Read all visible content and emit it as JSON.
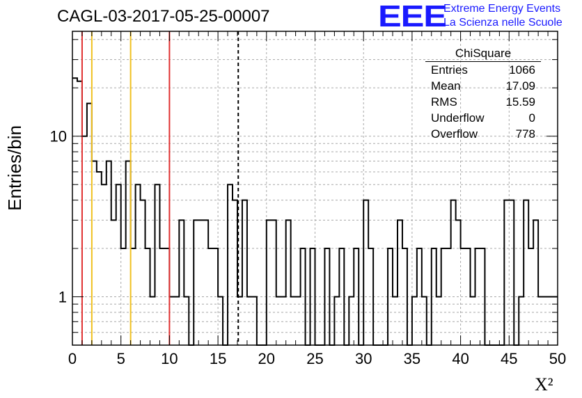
{
  "title": "CAGL-03-2017-05-25-00007",
  "logo": {
    "mark": "EEE",
    "line1": "Extreme Energy Events",
    "line2": "La Scienza nelle Scuole"
  },
  "stats": {
    "header": "ChiSquare",
    "rows": [
      {
        "label": "Entries",
        "value": "1066"
      },
      {
        "label": "Mean",
        "value": "17.09"
      },
      {
        "label": "RMS",
        "value": "15.59"
      },
      {
        "label": "Underflow",
        "value": "0"
      },
      {
        "label": "Overflow",
        "value": "778"
      }
    ]
  },
  "chart_data": {
    "type": "histogram",
    "title": "CAGL-03-2017-05-25-00007",
    "xlabel": "X²",
    "ylabel": "Entries/bin",
    "xlim": [
      0,
      50
    ],
    "ylim": [
      0.5,
      45
    ],
    "yscale": "log",
    "grid": true,
    "bin_width": 0.5,
    "x_ticks": [
      0,
      5,
      10,
      15,
      20,
      25,
      30,
      35,
      40,
      45,
      50
    ],
    "y_ticks": [
      1,
      10
    ],
    "counts": [
      23,
      22,
      10,
      16,
      7,
      6,
      5,
      7,
      3,
      5,
      2,
      7,
      2,
      5,
      4,
      2,
      1,
      5,
      2,
      2,
      1,
      1,
      3,
      1,
      0,
      3,
      3,
      3,
      2,
      2,
      1,
      0,
      5,
      4,
      1,
      4,
      1,
      1,
      0,
      0,
      3,
      3,
      1,
      1,
      3,
      1,
      1,
      2,
      0,
      2,
      0,
      0,
      2,
      0,
      1,
      2,
      0,
      1,
      2,
      0,
      4,
      2,
      0,
      0,
      0,
      2,
      1,
      3,
      2,
      0,
      1,
      2,
      1,
      0,
      2,
      1,
      2,
      2,
      4,
      3,
      2,
      2,
      1,
      2,
      2,
      0,
      0,
      0,
      0,
      4,
      4,
      0,
      1,
      4,
      2,
      3,
      1,
      1,
      1,
      1
    ],
    "reference_lines": [
      {
        "x": 1,
        "color": "#e03030",
        "style": "solid"
      },
      {
        "x": 2,
        "color": "#f0c020",
        "style": "solid"
      },
      {
        "x": 6,
        "color": "#f0c020",
        "style": "solid"
      },
      {
        "x": 10,
        "color": "#e03030",
        "style": "solid"
      },
      {
        "x": 17.09,
        "color": "#000000",
        "style": "dashed"
      }
    ]
  }
}
